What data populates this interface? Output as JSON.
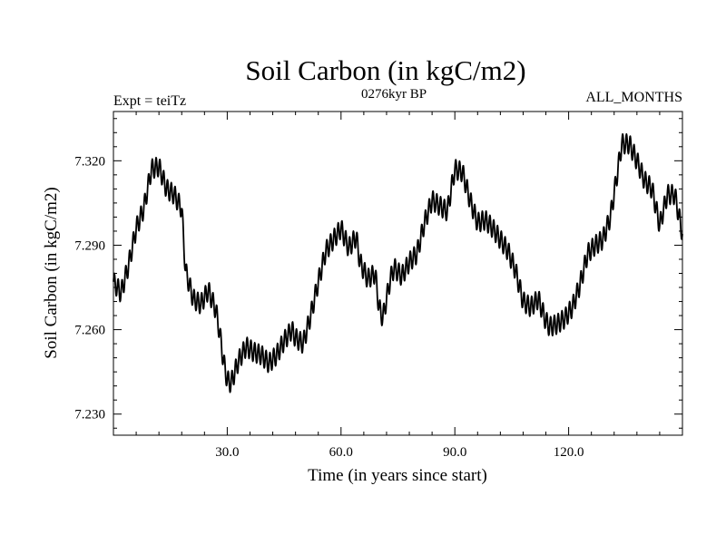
{
  "chart_data": {
    "type": "line",
    "title": "Soil Carbon (in kgC/m2)",
    "subtitle": "0276kyr BP",
    "left_note": "Expt = teiTz",
    "right_note": "ALL_MONTHS",
    "xlabel": "Time (in years since start)",
    "ylabel": "Soil Carbon (in kgC/m2)",
    "xlim": [
      0,
      150
    ],
    "ylim": [
      7.2225,
      7.3375
    ],
    "x_ticks": [
      30,
      60,
      90,
      120
    ],
    "x_tick_labels": [
      "30.0",
      "60.0",
      "90.0",
      "120.0"
    ],
    "y_ticks": [
      7.23,
      7.26,
      7.29,
      7.32
    ],
    "y_tick_labels": [
      "7.230",
      "7.260",
      "7.290",
      "7.320"
    ],
    "line_color": "#000000",
    "seasonal_amplitude": 0.0035,
    "series": [
      {
        "name": "Soil Carbon",
        "x": [
          0,
          2,
          4,
          6,
          8,
          10,
          12,
          14,
          16,
          18,
          19,
          21,
          23,
          25,
          27,
          28,
          29,
          30,
          31,
          33,
          35,
          37,
          39,
          41,
          43,
          45,
          47,
          48,
          50,
          52,
          54,
          56,
          58,
          60,
          62,
          64,
          65,
          67,
          69,
          70,
          71,
          73,
          74,
          76,
          78,
          80,
          82,
          84,
          86,
          88,
          90,
          92,
          94,
          96,
          98,
          100,
          102,
          104,
          106,
          108,
          110,
          112,
          114,
          115,
          117,
          119,
          121,
          123,
          125,
          127,
          129,
          131,
          133,
          134,
          136,
          138,
          140,
          142,
          144,
          146,
          148,
          150
        ],
        "y": [
          7.277,
          7.273,
          7.283,
          7.296,
          7.303,
          7.317,
          7.318,
          7.31,
          7.308,
          7.303,
          7.281,
          7.271,
          7.269,
          7.274,
          7.267,
          7.259,
          7.249,
          7.242,
          7.241,
          7.249,
          7.254,
          7.252,
          7.251,
          7.248,
          7.251,
          7.256,
          7.26,
          7.257,
          7.255,
          7.265,
          7.277,
          7.288,
          7.292,
          7.296,
          7.289,
          7.293,
          7.284,
          7.278,
          7.28,
          7.268,
          7.264,
          7.278,
          7.282,
          7.279,
          7.284,
          7.287,
          7.298,
          7.306,
          7.304,
          7.302,
          7.317,
          7.316,
          7.306,
          7.298,
          7.299,
          7.296,
          7.292,
          7.288,
          7.281,
          7.27,
          7.268,
          7.271,
          7.263,
          7.261,
          7.262,
          7.264,
          7.268,
          7.276,
          7.287,
          7.29,
          7.292,
          7.3,
          7.317,
          7.326,
          7.326,
          7.32,
          7.313,
          7.31,
          7.297,
          7.308,
          7.308,
          7.294
        ]
      }
    ]
  }
}
